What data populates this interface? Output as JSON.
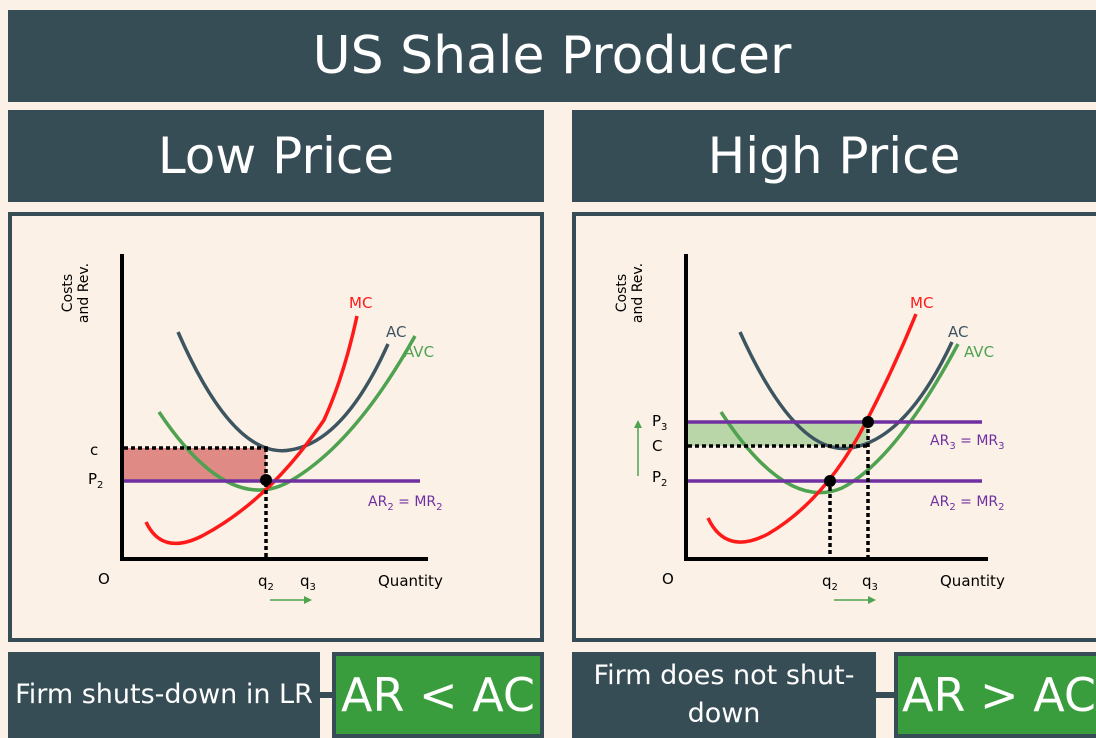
{
  "title": "US Shale Producer",
  "left": {
    "heading": "Low Price",
    "note": "Firm shuts-down in LR",
    "relation": "AR < AC",
    "graph": {
      "y_axis_label": [
        "Costs",
        "and Rev."
      ],
      "x_axis_label": "Quantity",
      "origin": "O",
      "curves": {
        "mc": "MC",
        "ac": "AC",
        "avc": "AVC"
      },
      "price_line_label": {
        "ar": "AR",
        "sub1": "2",
        "eq": " = MR",
        "sub2": "2"
      },
      "y_ticks": {
        "c": "c",
        "p": "P",
        "p_sub": "2"
      },
      "x_ticks": {
        "q2": "q",
        "q2_sub": "2",
        "q3": "q",
        "q3_sub": "3"
      }
    }
  },
  "right": {
    "heading": "High Price",
    "note": "Firm does not shut-down",
    "relation": "AR > AC",
    "graph": {
      "y_axis_label": [
        "Costs",
        "and Rev."
      ],
      "x_axis_label": "Quantity",
      "origin": "O",
      "curves": {
        "mc": "MC",
        "ac": "AC",
        "avc": "AVC"
      },
      "price_line_label_high": {
        "ar": "AR",
        "sub1": "3",
        "eq": " = MR",
        "sub2": "3"
      },
      "price_line_label_low": {
        "ar": "AR",
        "sub1": "2",
        "eq": " = MR",
        "sub2": "2"
      },
      "y_ticks": {
        "p3": "P",
        "p3_sub": "3",
        "c": "C",
        "p2": "P",
        "p2_sub": "2"
      },
      "x_ticks": {
        "q2": "q",
        "q2_sub": "2",
        "q3": "q",
        "q3_sub": "3"
      }
    }
  },
  "colors": {
    "panel_dark": "#364d55",
    "background": "#fbf1e7",
    "accent_green": "#3a9d3d",
    "mc_red": "#ff1a1a",
    "ac_slate": "#3d5560",
    "avc_green": "#4fa24f",
    "ar_purple": "#7030a0",
    "loss_fill": "#e08a86",
    "profit_fill": "#b8d6a8"
  }
}
